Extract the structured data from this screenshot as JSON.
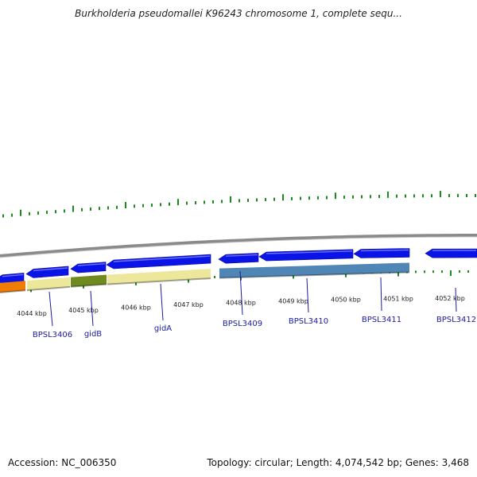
{
  "title": "Burkholderia pseudomallei K96243 chromosome 1, complete sequ...",
  "footer": {
    "accession": "Accession: NC_006350",
    "summary": "Topology: circular; Length: 4,074,542 bp; Genes: 3,468"
  },
  "colors": {
    "forward_gene": "#0a14e6",
    "backbone": "#8a8a8a",
    "tick": "#1a8a1a",
    "feature_orange": "#f07c00",
    "feature_khaki": "#ece79a",
    "feature_olive": "#6f8a1e",
    "feature_steelblue": "#4f86b5",
    "gene_label": "#1a1aa6"
  },
  "kbp_labels": [
    "4044 kbp",
    "4045 kbp",
    "4046 kbp",
    "4047 kbp",
    "4048 kbp",
    "4049 kbp",
    "4050 kbp",
    "4051 kbp",
    "4052 kbp"
  ],
  "gene_labels": [
    "BPSL3406",
    "gidB",
    "gidA",
    "BPSL3409",
    "BPSL3410",
    "BPSL3411",
    "BPSL3412"
  ]
}
